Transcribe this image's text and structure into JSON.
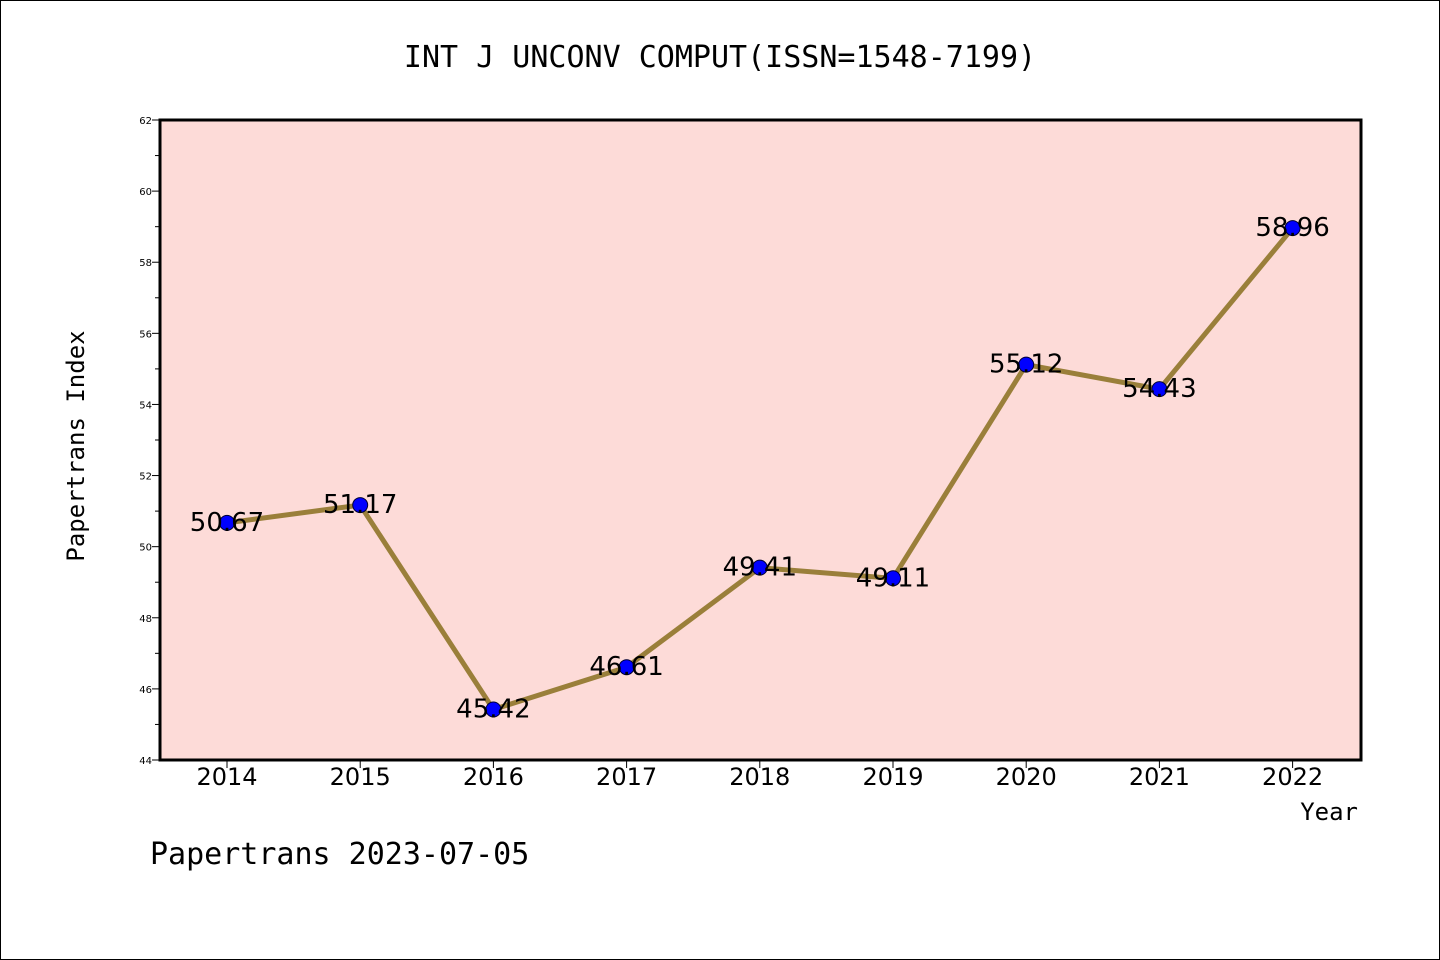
{
  "chart_data": {
    "type": "line",
    "title": "INT J UNCONV COMPUT(ISSN=1548-7199)",
    "xlabel": "Year",
    "ylabel": "Papertrans Index",
    "categories": [
      "2014",
      "2015",
      "2016",
      "2017",
      "2018",
      "2019",
      "2020",
      "2021",
      "2022"
    ],
    "values": [
      50.67,
      51.17,
      45.42,
      46.61,
      49.41,
      49.11,
      55.12,
      54.43,
      58.96
    ],
    "data_labels": [
      "50.67",
      "51.17",
      "45.42",
      "46.61",
      "49.41",
      "49.11",
      "55.12",
      "54.43",
      "58.96"
    ],
    "ylim": [
      44,
      62
    ],
    "yticks": [
      "44",
      "46",
      "48",
      "50",
      "52",
      "54",
      "56",
      "58",
      "60",
      "62"
    ],
    "grid": false,
    "legend": "none",
    "colors": {
      "plot_background": "#fddbd8",
      "line": "#9a7f3a",
      "marker": "#0000ff"
    }
  },
  "footer": "Papertrans 2023-07-05"
}
